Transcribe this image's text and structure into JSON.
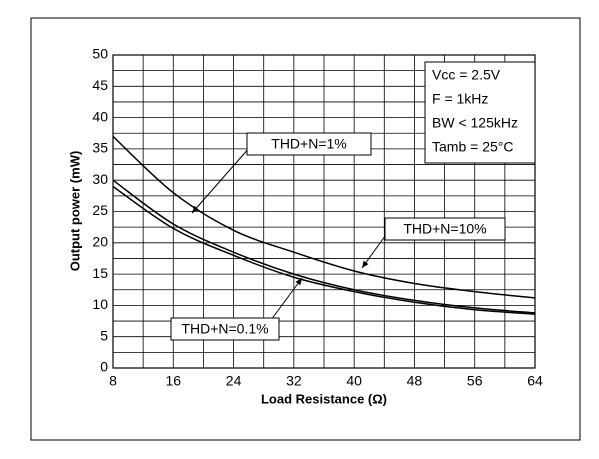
{
  "chart_data": {
    "type": "line",
    "xlabel": "Load Resistance (Ω)",
    "ylabel": "Output power (mW)",
    "x": [
      8,
      16,
      24,
      32,
      40,
      48,
      56,
      64
    ],
    "series": [
      {
        "name": "THD+N=10%",
        "color": "#000000",
        "values": [
          37,
          28,
          22,
          18.5,
          15.5,
          13.5,
          12.2,
          11.2
        ]
      },
      {
        "name": "THD+N=1%",
        "color": "#000000",
        "values": [
          30,
          23,
          18.5,
          15,
          12.5,
          10.8,
          9.6,
          8.8
        ]
      },
      {
        "name": "THD+N=0.1%",
        "color": "#000000",
        "values": [
          29,
          22.3,
          18,
          14.5,
          12.2,
          10.5,
          9.3,
          8.6
        ]
      }
    ],
    "conditions": [
      "Vcc = 2.5V",
      "F = 1kHz",
      "BW < 125kHz",
      "Tamb = 25°C"
    ],
    "xlim": [
      8,
      64
    ],
    "xticks": [
      8,
      16,
      24,
      32,
      40,
      48,
      56,
      64
    ],
    "ylim": [
      0,
      50
    ],
    "yticks": [
      0,
      5,
      10,
      15,
      20,
      25,
      30,
      35,
      40,
      45,
      50
    ],
    "grid": true
  }
}
